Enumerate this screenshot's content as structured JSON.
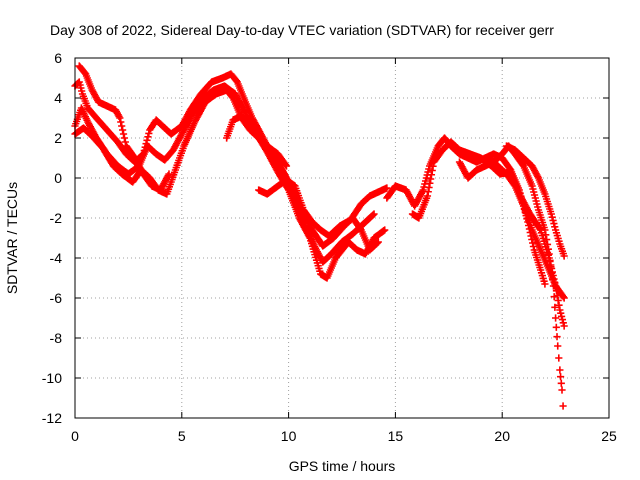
{
  "chart_data": {
    "type": "scatter",
    "title": "Day 308 of 2022, Sidereal Day-to-day VTEC variation (SDTVAR) for receiver gerr",
    "xlabel": "GPS time / hours",
    "ylabel": "SDTVAR / TECUs",
    "xlim": [
      0,
      25
    ],
    "ylim": [
      -12,
      6
    ],
    "xticks": [
      "0",
      "5",
      "10",
      "15",
      "20",
      "25"
    ],
    "yticks": [
      "-12",
      "-10",
      "-8",
      "-6",
      "-4",
      "-2",
      "0",
      "2",
      "4",
      "6"
    ],
    "grid": true,
    "marker": "plus",
    "color": "#ff0000",
    "series": [
      {
        "points": [
          [
            0.0,
            4.6
          ],
          [
            0.2,
            4.8
          ],
          [
            0.35,
            4.2
          ],
          [
            0.6,
            3.5
          ],
          [
            1.0,
            3.0
          ],
          [
            1.5,
            2.4
          ],
          [
            2.0,
            1.8
          ],
          [
            2.4,
            1.2
          ],
          [
            2.8,
            0.8
          ],
          [
            3.2,
            1.2
          ],
          [
            3.5,
            2.4
          ],
          [
            3.8,
            2.9
          ],
          [
            4.1,
            2.6
          ],
          [
            4.5,
            2.2
          ],
          [
            5.0,
            2.6
          ],
          [
            5.4,
            3.4
          ],
          [
            5.9,
            4.2
          ],
          [
            6.4,
            4.8
          ],
          [
            6.9,
            5.0
          ],
          [
            7.3,
            5.2
          ],
          [
            7.6,
            4.8
          ],
          [
            7.9,
            4.0
          ],
          [
            8.3,
            3.0
          ],
          [
            8.8,
            2.0
          ],
          [
            9.3,
            1.0
          ],
          [
            9.8,
            0.2
          ],
          [
            10.3,
            -1.0
          ],
          [
            10.8,
            -2.5
          ],
          [
            11.3,
            -3.6
          ],
          [
            11.6,
            -4.2
          ],
          [
            12.0,
            -3.8
          ],
          [
            12.5,
            -3.2
          ],
          [
            13.0,
            -2.8
          ],
          [
            13.5,
            -2.3
          ],
          [
            14.0,
            -1.8
          ]
        ]
      },
      {
        "points": [
          [
            0.0,
            2.6
          ],
          [
            0.3,
            3.5
          ],
          [
            0.6,
            2.8
          ],
          [
            1.0,
            2.0
          ],
          [
            1.5,
            1.2
          ],
          [
            2.0,
            0.6
          ],
          [
            2.5,
            0.2
          ],
          [
            3.0,
            0.6
          ],
          [
            3.4,
            1.6
          ],
          [
            3.8,
            1.2
          ],
          [
            4.2,
            0.9
          ],
          [
            4.6,
            1.4
          ],
          [
            5.0,
            2.2
          ],
          [
            5.5,
            3.2
          ],
          [
            6.0,
            4.0
          ],
          [
            6.5,
            4.4
          ],
          [
            7.0,
            4.6
          ],
          [
            7.5,
            4.2
          ],
          [
            8.0,
            3.2
          ],
          [
            8.5,
            2.2
          ],
          [
            9.0,
            1.3
          ],
          [
            9.5,
            0.3
          ],
          [
            10.0,
            -0.6
          ],
          [
            10.5,
            -2.0
          ],
          [
            11.0,
            -3.0
          ],
          [
            11.5,
            -4.8
          ],
          [
            11.8,
            -5.0
          ],
          [
            12.2,
            -4.0
          ],
          [
            12.8,
            -3.2
          ],
          [
            13.2,
            -3.6
          ],
          [
            13.6,
            -3.8
          ],
          [
            14.0,
            -3.0
          ],
          [
            14.5,
            -2.6
          ]
        ]
      },
      {
        "points": [
          [
            0.0,
            2.2
          ],
          [
            0.4,
            2.5
          ],
          [
            0.8,
            2.1
          ],
          [
            1.3,
            1.5
          ],
          [
            1.8,
            0.6
          ],
          [
            2.2,
            0.2
          ],
          [
            2.7,
            -0.2
          ],
          [
            3.1,
            0.4
          ],
          [
            3.5,
            0.0
          ],
          [
            3.9,
            -0.6
          ],
          [
            4.3,
            -0.8
          ],
          [
            4.7,
            0.4
          ],
          [
            5.1,
            1.6
          ],
          [
            5.6,
            2.8
          ],
          [
            6.1,
            3.8
          ],
          [
            6.6,
            4.2
          ],
          [
            7.1,
            4.4
          ],
          [
            7.4,
            4.0
          ],
          [
            7.8,
            3.0
          ],
          [
            8.2,
            2.4
          ],
          [
            8.6,
            2.0
          ],
          [
            9.1,
            1.4
          ],
          [
            9.6,
            0.6
          ],
          [
            10.1,
            -0.4
          ],
          [
            10.6,
            -1.6
          ],
          [
            11.1,
            -2.6
          ],
          [
            11.6,
            -3.4
          ],
          [
            12.1,
            -3.0
          ],
          [
            12.6,
            -2.4
          ],
          [
            13.0,
            -2.0
          ],
          [
            13.4,
            -2.6
          ],
          [
            13.8,
            -3.6
          ],
          [
            14.2,
            -3.2
          ]
        ]
      },
      {
        "points": [
          [
            0.2,
            5.6
          ],
          [
            0.5,
            5.2
          ],
          [
            0.8,
            4.4
          ],
          [
            1.1,
            3.8
          ],
          [
            1.5,
            3.6
          ],
          [
            1.9,
            3.4
          ],
          [
            2.1,
            3.0
          ],
          [
            2.4,
            1.6
          ],
          [
            2.8,
            1.0
          ],
          [
            3.2,
            0.2
          ],
          [
            3.6,
            -0.4
          ],
          [
            4.0,
            -0.6
          ],
          [
            4.4,
            0.2
          ]
        ]
      },
      {
        "points": [
          [
            7.1,
            2.0
          ],
          [
            7.4,
            2.9
          ],
          [
            7.8,
            3.1
          ],
          [
            8.2,
            2.6
          ],
          [
            8.6,
            2.0
          ],
          [
            9.0,
            1.6
          ],
          [
            9.5,
            1.2
          ],
          [
            9.9,
            0.6
          ]
        ]
      },
      {
        "points": [
          [
            8.6,
            -0.6
          ],
          [
            9.0,
            -0.8
          ],
          [
            9.5,
            -0.4
          ],
          [
            9.9,
            -0.1
          ],
          [
            10.3,
            -0.4
          ],
          [
            10.7,
            -1.6
          ],
          [
            11.1,
            -2.2
          ],
          [
            11.5,
            -2.6
          ],
          [
            11.9,
            -2.9
          ],
          [
            12.4,
            -2.4
          ],
          [
            12.9,
            -2.1
          ],
          [
            13.4,
            -1.3
          ],
          [
            13.8,
            -0.9
          ],
          [
            14.2,
            -0.7
          ],
          [
            14.6,
            -0.5
          ]
        ]
      },
      {
        "points": [
          [
            14.6,
            -1.0
          ],
          [
            15.0,
            -0.4
          ],
          [
            15.5,
            -0.6
          ],
          [
            15.9,
            -1.4
          ],
          [
            16.3,
            -0.6
          ],
          [
            16.6,
            0.6
          ],
          [
            17.0,
            1.6
          ],
          [
            17.3,
            2.0
          ],
          [
            17.6,
            1.6
          ],
          [
            18.0,
            1.2
          ],
          [
            18.4,
            1.0
          ],
          [
            18.8,
            0.8
          ],
          [
            19.2,
            1.0
          ],
          [
            19.6,
            1.2
          ],
          [
            20.0,
            1.0
          ],
          [
            20.4,
            0.4
          ],
          [
            20.8,
            -0.6
          ],
          [
            21.2,
            -2.2
          ],
          [
            21.5,
            -3.6
          ],
          [
            21.8,
            -4.6
          ],
          [
            22.0,
            -5.3
          ]
        ]
      },
      {
        "points": [
          [
            15.8,
            -1.8
          ],
          [
            16.1,
            -2.0
          ],
          [
            16.5,
            -0.9
          ],
          [
            16.8,
            0.8
          ],
          [
            17.2,
            1.4
          ],
          [
            17.6,
            1.8
          ],
          [
            18.0,
            1.4
          ],
          [
            18.5,
            1.2
          ],
          [
            19.0,
            1.0
          ],
          [
            19.5,
            0.6
          ],
          [
            19.9,
            0.2
          ],
          [
            20.4,
            0.3
          ],
          [
            20.9,
            -1.0
          ],
          [
            21.3,
            -1.8
          ],
          [
            21.8,
            -2.6
          ],
          [
            22.2,
            -4.0
          ],
          [
            22.5,
            -5.4
          ],
          [
            22.7,
            -6.6
          ],
          [
            22.9,
            -7.4
          ]
        ]
      },
      {
        "points": [
          [
            18.0,
            0.8
          ],
          [
            18.4,
            0.0
          ],
          [
            18.8,
            0.4
          ],
          [
            19.2,
            0.6
          ],
          [
            19.6,
            0.8
          ],
          [
            20.0,
            1.2
          ],
          [
            20.3,
            1.6
          ],
          [
            20.6,
            1.2
          ],
          [
            21.0,
            0.6
          ],
          [
            21.4,
            -0.4
          ],
          [
            21.7,
            -1.6
          ],
          [
            22.0,
            -2.6
          ],
          [
            22.2,
            -3.8
          ],
          [
            22.4,
            -5.4
          ],
          [
            22.5,
            -7.0
          ],
          [
            22.6,
            -8.4
          ],
          [
            22.7,
            -9.6
          ],
          [
            22.8,
            -10.6
          ],
          [
            22.85,
            -11.4
          ]
        ]
      },
      {
        "points": [
          [
            20.2,
            1.6
          ],
          [
            20.6,
            1.4
          ],
          [
            21.0,
            1.0
          ],
          [
            21.4,
            0.6
          ],
          [
            21.7,
            0.0
          ],
          [
            22.0,
            -0.8
          ],
          [
            22.3,
            -1.8
          ],
          [
            22.5,
            -2.6
          ],
          [
            22.7,
            -3.3
          ],
          [
            22.9,
            -3.9
          ]
        ]
      },
      {
        "points": [
          [
            19.4,
            1.0
          ],
          [
            19.8,
            0.6
          ],
          [
            20.2,
            0.2
          ],
          [
            20.6,
            -0.4
          ],
          [
            21.0,
            -1.4
          ],
          [
            21.4,
            -2.6
          ],
          [
            21.8,
            -3.6
          ],
          [
            22.2,
            -4.6
          ],
          [
            22.5,
            -5.4
          ],
          [
            22.9,
            -6.0
          ]
        ]
      }
    ]
  }
}
